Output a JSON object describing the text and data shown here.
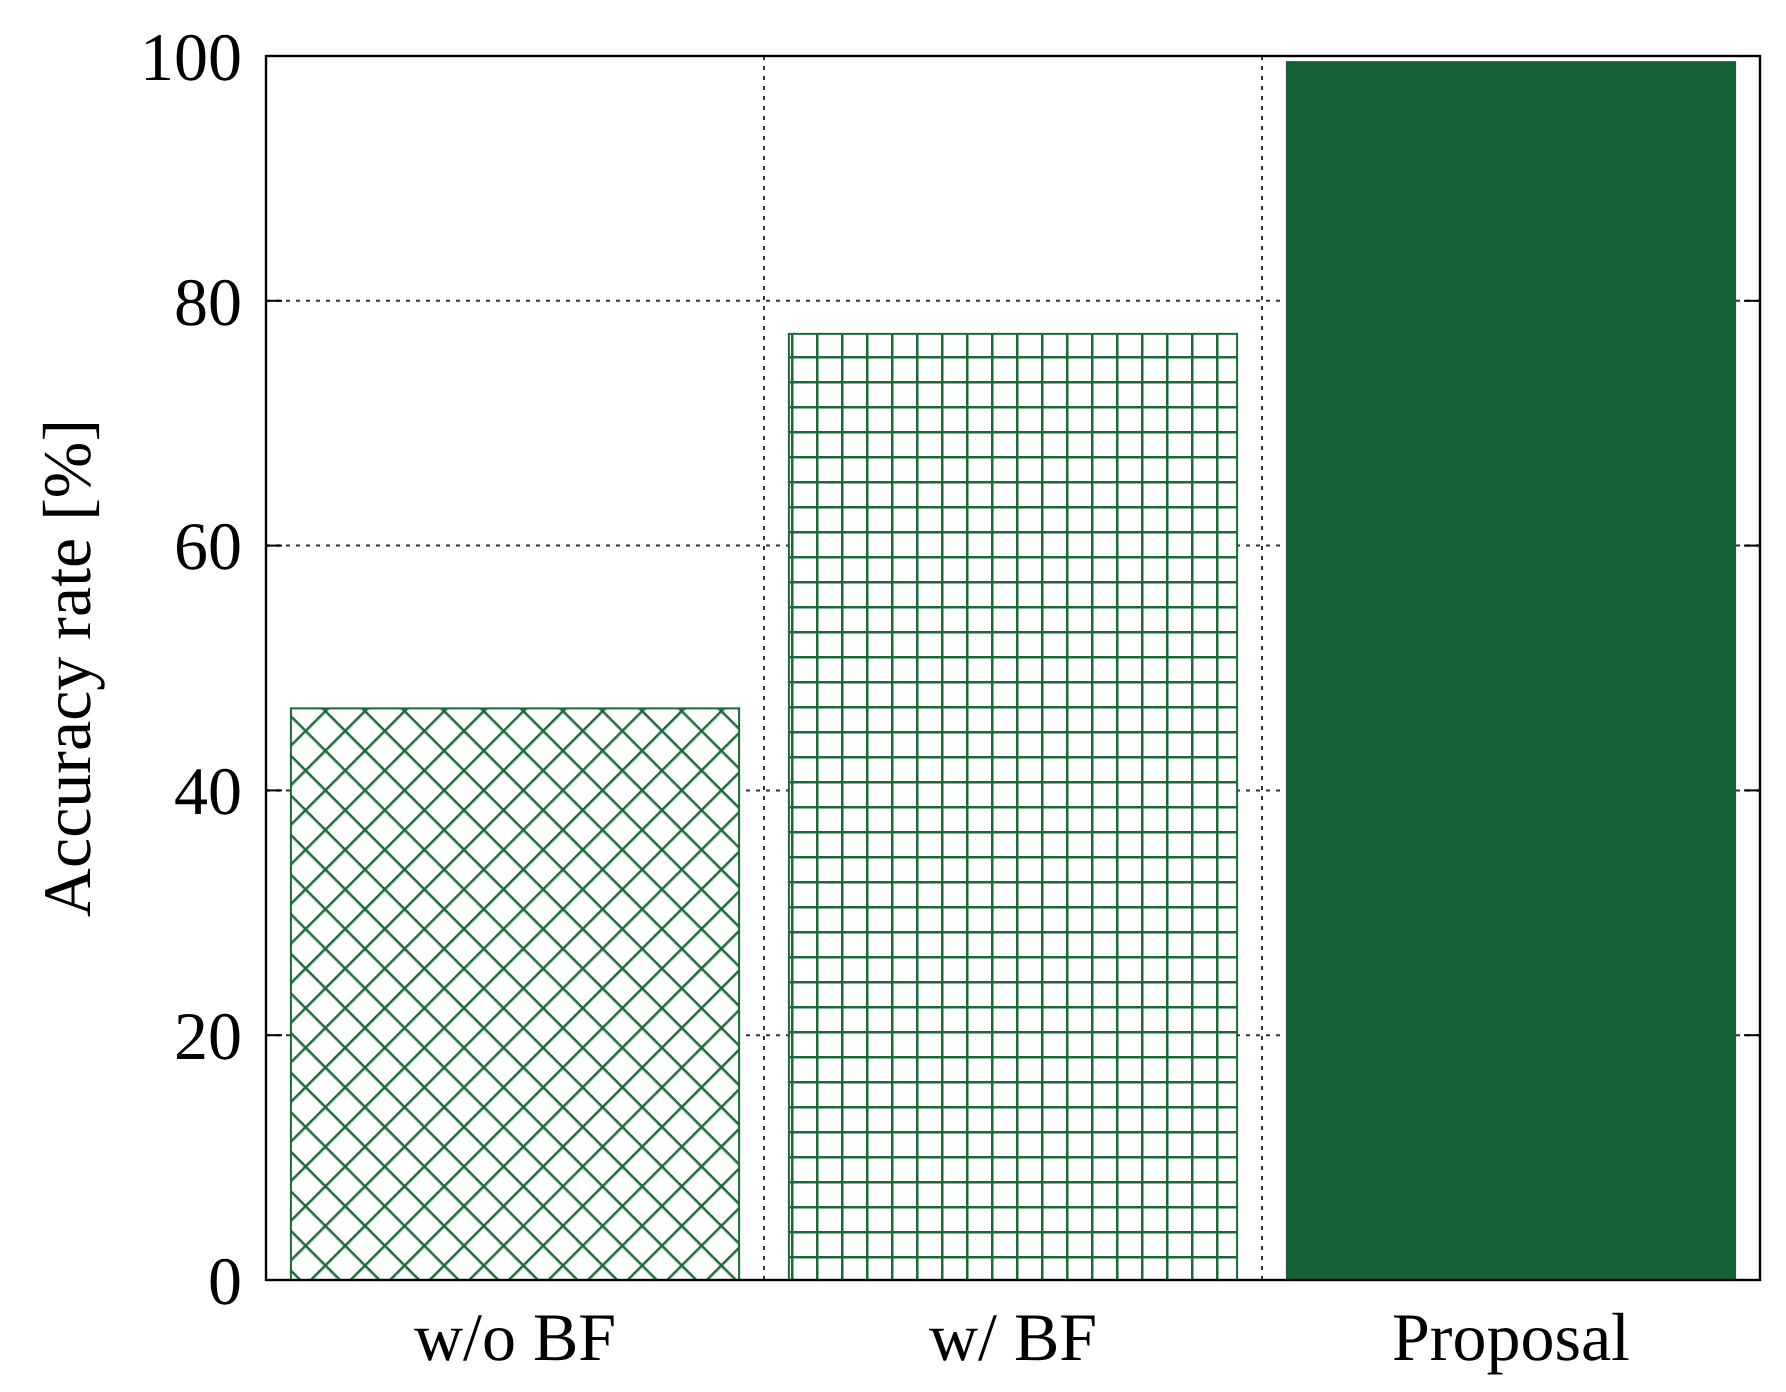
{
  "chart_data": {
    "type": "bar",
    "ylabel": "Accuracy rate [%]",
    "categories": [
      "w/o BF",
      "w/ BF",
      "Proposal"
    ],
    "values": [
      46.7,
      77.3,
      99.5
    ],
    "colors": [
      "#1a6a38",
      "#1a6a38",
      "#176134"
    ],
    "ylim": [
      0,
      100
    ],
    "yticks": [
      0,
      20,
      40,
      60,
      80,
      100
    ],
    "grid": true
  }
}
